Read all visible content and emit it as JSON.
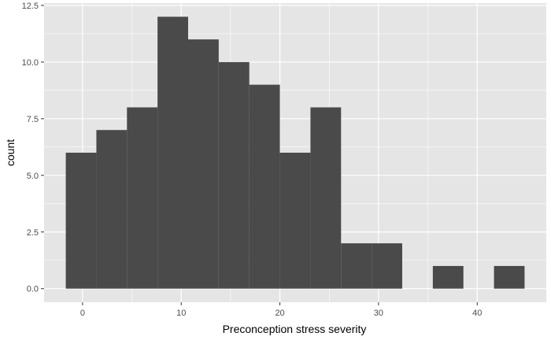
{
  "chart_data": {
    "type": "bar",
    "subtype": "histogram",
    "title": "",
    "xlabel": "Preconception stress severity",
    "ylabel": "count",
    "bin_width": 3.1,
    "bins": [
      {
        "x_start": -1.7,
        "x_end": 1.4,
        "count": 6
      },
      {
        "x_start": 1.4,
        "x_end": 4.5,
        "count": 7
      },
      {
        "x_start": 4.5,
        "x_end": 7.6,
        "count": 8
      },
      {
        "x_start": 7.6,
        "x_end": 10.7,
        "count": 12
      },
      {
        "x_start": 10.7,
        "x_end": 13.8,
        "count": 11
      },
      {
        "x_start": 13.8,
        "x_end": 16.9,
        "count": 10
      },
      {
        "x_start": 16.9,
        "x_end": 20.0,
        "count": 9
      },
      {
        "x_start": 20.0,
        "x_end": 23.1,
        "count": 6
      },
      {
        "x_start": 23.1,
        "x_end": 26.2,
        "count": 8
      },
      {
        "x_start": 26.2,
        "x_end": 29.3,
        "count": 2
      },
      {
        "x_start": 29.3,
        "x_end": 32.4,
        "count": 2
      },
      {
        "x_start": 32.4,
        "x_end": 35.5,
        "count": 0
      },
      {
        "x_start": 35.5,
        "x_end": 38.6,
        "count": 1
      },
      {
        "x_start": 38.6,
        "x_end": 41.7,
        "count": 0
      },
      {
        "x_start": 41.7,
        "x_end": 44.8,
        "count": 1
      }
    ],
    "xlim": [
      -3.9,
      47.0
    ],
    "ylim": [
      -0.6,
      12.6
    ],
    "x_ticks": [
      0,
      10,
      20,
      30,
      40
    ],
    "x_tick_labels": [
      "0",
      "10",
      "20",
      "30",
      "40"
    ],
    "y_ticks": [
      0,
      2.5,
      5,
      7.5,
      10,
      12.5
    ],
    "y_tick_labels": [
      "0.0",
      "2.5",
      "5.0",
      "7.5",
      "10.0",
      "12.5"
    ],
    "grid": true,
    "colors": {
      "bar": "#4a4a4a",
      "panel_background": "#e5e5e5",
      "grid_major": "#ffffff",
      "tick_text": "#4d4d4d",
      "axis_title": "#000000"
    }
  }
}
